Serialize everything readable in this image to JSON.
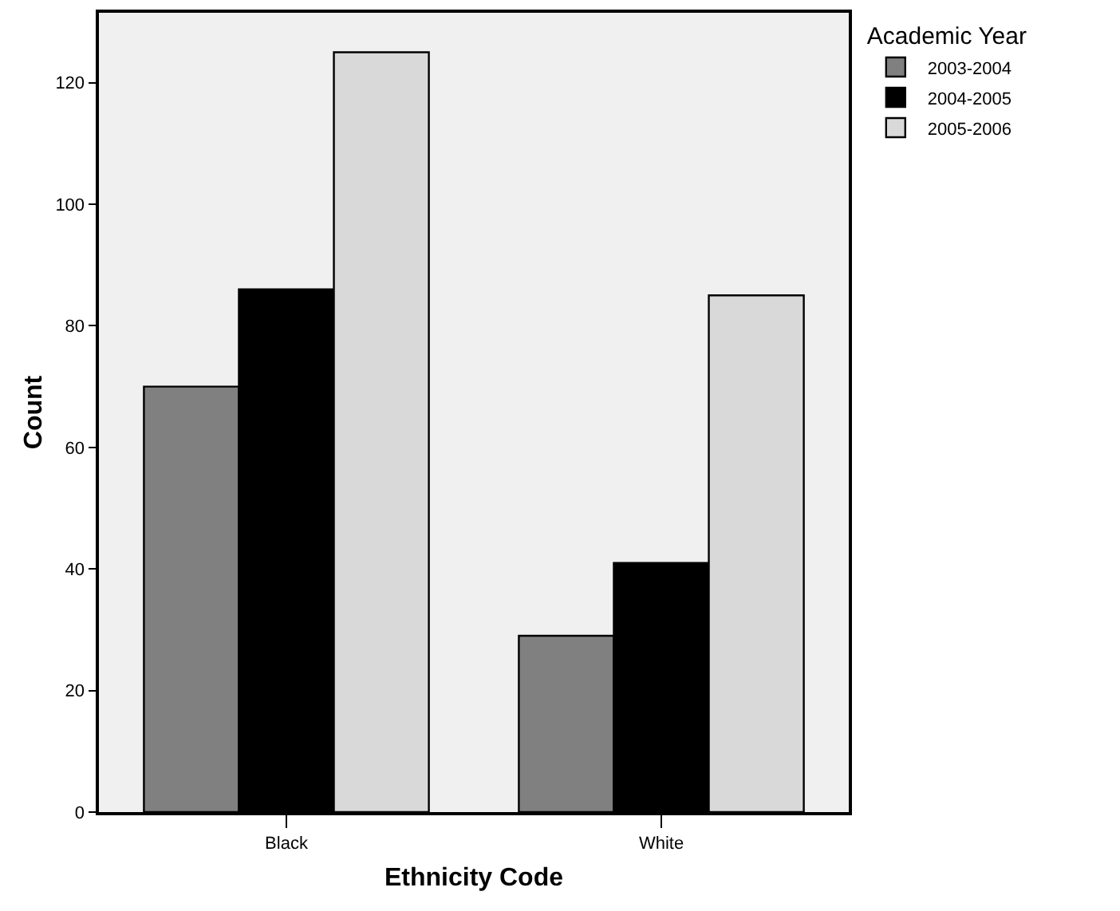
{
  "chart_data": {
    "type": "bar",
    "xlabel": "Ethnicity Code",
    "ylabel": "Count",
    "legend_title": "Academic Year",
    "categories": [
      "Black",
      "White"
    ],
    "series": [
      {
        "name": "2003-2004",
        "color": "#808080",
        "values": [
          70,
          29
        ]
      },
      {
        "name": "2004-2005",
        "color": "#000000",
        "values": [
          86,
          41
        ]
      },
      {
        "name": "2005-2006",
        "color": "#d9d9d9",
        "values": [
          125,
          85
        ]
      }
    ],
    "ylim": [
      0,
      131.5
    ],
    "yticks": [
      0,
      20,
      40,
      60,
      80,
      100,
      120
    ],
    "grid": false,
    "legend": "top right"
  }
}
